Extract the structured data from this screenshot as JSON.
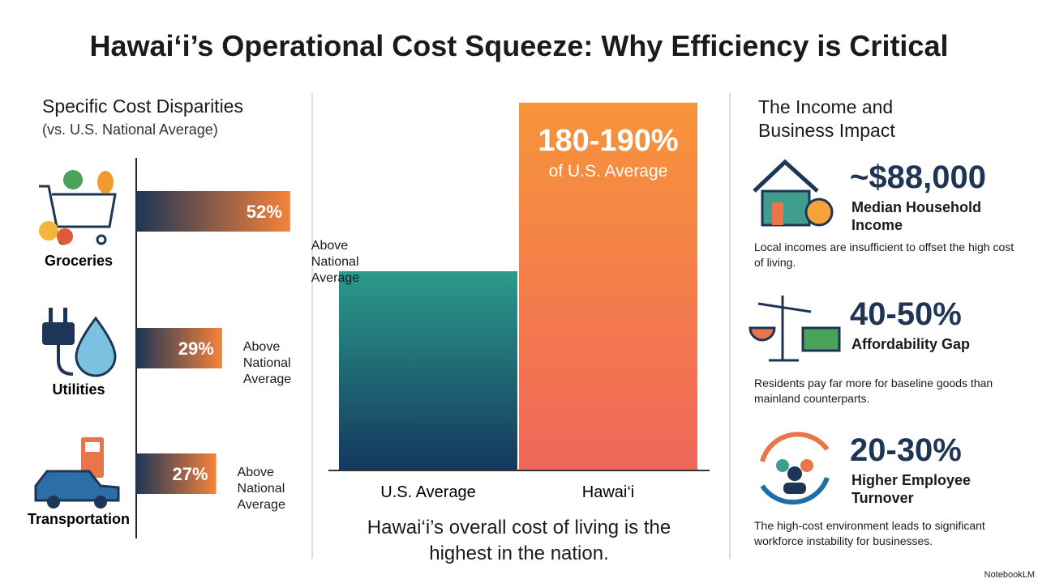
{
  "title": "Hawai‘i’s Operational Cost Squeeze: Why Efficiency is Critical",
  "chart_data": [
    {
      "type": "hbar",
      "title": "Specific Cost Disparities",
      "subtitle": "(vs. U.S. National Average)",
      "categories": [
        "Groceries",
        "Utilities",
        "Transportation"
      ],
      "values": [
        52,
        29,
        27
      ],
      "value_labels": [
        "52%",
        "29%",
        "27%"
      ],
      "annotations": [
        "Above National Average",
        "Above National Average",
        "Above National Average"
      ],
      "xlim": [
        0,
        60
      ],
      "colors": [
        "#1e3556",
        "#f5823a"
      ]
    },
    {
      "type": "bar",
      "categories": [
        "U.S. Average",
        "Hawai‘i"
      ],
      "values": [
        100,
        185
      ],
      "annotation": "180-190%",
      "annotation_sub": "of U.S. Average",
      "caption": "Hawai‘i’s overall cost of living is the highest in the nation.",
      "ylim": [
        0,
        200
      ],
      "series_colors": [
        [
          "#2a9b8a",
          "#14385e"
        ],
        [
          "#f7943a",
          "#f0675a"
        ]
      ]
    }
  ],
  "impact": {
    "title": "The Income and Business Impact",
    "items": [
      {
        "value": "~$88,000",
        "label": "Median Household Income",
        "text": "Local incomes are insufficient to offset the high cost of living."
      },
      {
        "value": "40-50%",
        "label": "Affordability Gap",
        "text": "Residents pay far more for baseline goods than mainland counterparts."
      },
      {
        "value": "20-30%",
        "label": "Higher Employee Turnover",
        "text": "The high-cost environment leads to significant workforce instability for businesses."
      }
    ]
  },
  "footer": "NotebookLM"
}
